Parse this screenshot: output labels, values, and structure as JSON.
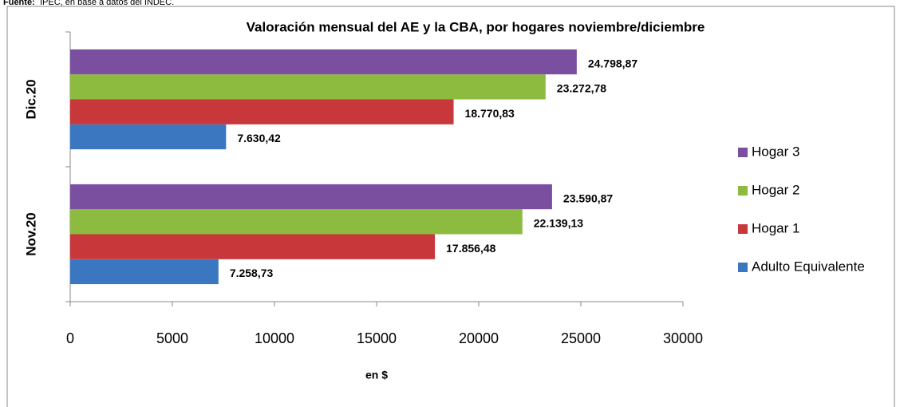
{
  "source_label": "Fuente:",
  "source": "IPEC, en base a datos del INDEC.",
  "chart_data": {
    "type": "barh",
    "title": "Valoración mensual del AE y la CBA, por hogares noviembre/diciembre",
    "xlabel": "en $",
    "categories": [
      "Nov.20",
      "Dic.20"
    ],
    "series": [
      {
        "name": "Adulto Equivalente",
        "color": "#3b77c0",
        "values": [
          7258.73,
          7630.42
        ],
        "value_labels": [
          "7.258,73",
          "7.630,42"
        ]
      },
      {
        "name": "Hogar 1",
        "color": "#c8373a",
        "values": [
          17856.48,
          18770.83
        ],
        "value_labels": [
          "17.856,48",
          "18.770,83"
        ]
      },
      {
        "name": "Hogar 2",
        "color": "#8dbb40",
        "values": [
          22139.13,
          23272.78
        ],
        "value_labels": [
          "22.139,13",
          "23.272,78"
        ]
      },
      {
        "name": "Hogar 3",
        "color": "#7a4f9f",
        "values": [
          23590.87,
          24798.87
        ],
        "value_labels": [
          "23.590,87",
          "24.798,87"
        ]
      }
    ],
    "xlim": [
      0,
      30000
    ],
    "xticks": [
      0,
      5000,
      10000,
      15000,
      20000,
      25000,
      30000
    ],
    "legend": "right",
    "grid": false
  }
}
